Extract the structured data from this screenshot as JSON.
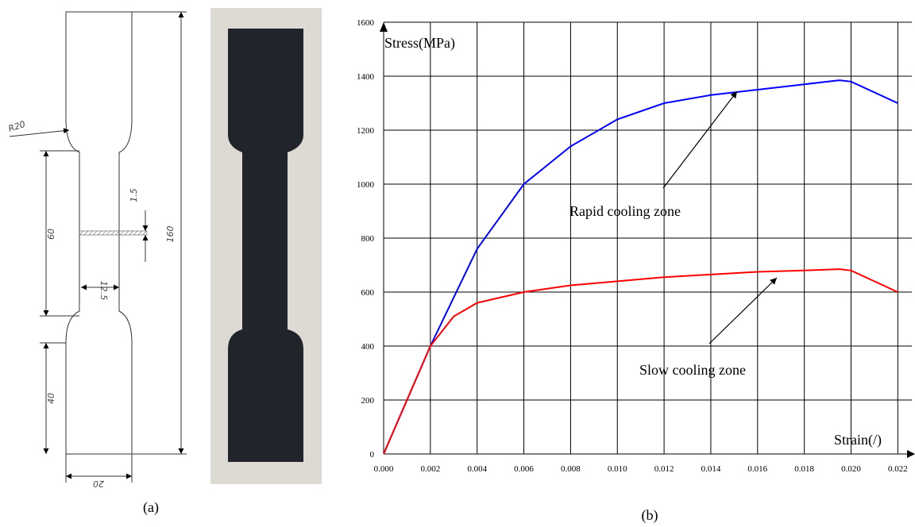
{
  "drawing": {
    "labels": [
      "R20",
      "60",
      "1.5",
      "160",
      "12.5",
      "40",
      "20"
    ]
  },
  "captions": [
    "(a)",
    "(b)"
  ],
  "chart_data": {
    "type": "line",
    "xlabel": "Strain(/)",
    "ylabel": "Stress(MPa)",
    "series": [
      {
        "name": "Rapid cooling zone",
        "color": "#0000ff",
        "x": [
          0,
          0.002,
          0.004,
          0.006,
          0.008,
          0.01,
          0.012,
          0.014,
          0.016,
          0.018,
          0.0195,
          0.02,
          0.022
        ],
        "values": [
          0,
          400,
          760,
          1000,
          1140,
          1240,
          1300,
          1330,
          1350,
          1370,
          1385,
          1380,
          1300
        ]
      },
      {
        "name": "Slow cooling zone",
        "color": "#ff0000",
        "x": [
          0,
          0.002,
          0.003,
          0.004,
          0.006,
          0.008,
          0.01,
          0.012,
          0.014,
          0.016,
          0.018,
          0.0195,
          0.02,
          0.022
        ],
        "values": [
          0,
          400,
          510,
          560,
          600,
          625,
          640,
          655,
          665,
          675,
          680,
          685,
          680,
          600
        ]
      }
    ],
    "xlim": [
      0,
      0.0226
    ],
    "ylim": [
      0,
      1600
    ],
    "xticks": [
      {
        "value": 0,
        "label": "0.000"
      },
      {
        "value": 0.002,
        "label": "0.002"
      },
      {
        "value": 0.004,
        "label": "0.004"
      },
      {
        "value": 0.006,
        "label": "0.006"
      },
      {
        "value": 0.008,
        "label": "0.008"
      },
      {
        "value": 0.01,
        "label": "0.010"
      },
      {
        "value": 0.012,
        "label": "0.012"
      },
      {
        "value": 0.014,
        "label": "0.014"
      },
      {
        "value": 0.016,
        "label": "0.016"
      },
      {
        "value": 0.018,
        "label": "0.018"
      },
      {
        "value": 0.02,
        "label": "0.020"
      },
      {
        "value": 0.022,
        "label": "0.022"
      }
    ],
    "yticks": [
      0,
      200,
      400,
      600,
      800,
      1000,
      1200,
      1400,
      1600
    ],
    "grid": true
  }
}
